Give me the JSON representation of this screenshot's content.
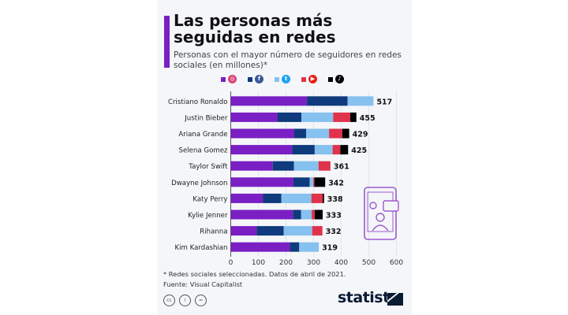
{
  "header": {
    "title": "Las personas más seguidas en redes",
    "subtitle": "Personas con el mayor número de seguidores en redes sociales (en millones)*"
  },
  "legend": [
    {
      "name": "Instagram",
      "icon": "instagram-icon",
      "color": "#7a1fc4",
      "glyph": "◎",
      "icon_bg": "#d9427a"
    },
    {
      "name": "Facebook",
      "icon": "facebook-icon",
      "color": "#0f3a7d",
      "glyph": "f",
      "icon_bg": "#3b5998"
    },
    {
      "name": "Twitter",
      "icon": "twitter-icon",
      "color": "#86c1ef",
      "glyph": "t",
      "icon_bg": "#1da1f2"
    },
    {
      "name": "YouTube",
      "icon": "youtube-icon",
      "color": "#e0324b",
      "glyph": "▶",
      "icon_bg": "#e62117"
    },
    {
      "name": "TikTok",
      "icon": "tiktok-icon",
      "color": "#000000",
      "glyph": "♪",
      "icon_bg": "#000000"
    }
  ],
  "chart_data": {
    "type": "bar",
    "orientation": "horizontal",
    "stacked": true,
    "title": "Las personas más seguidas en redes",
    "categories": [
      "Cristiano Ronaldo",
      "Justin Bieber",
      "Ariana Grande",
      "Selena Gomez",
      "Taylor Swift",
      "Dwayne Johnson",
      "Katy Perry",
      "Kylie Jenner",
      "Rihanna",
      "Kim Kardashian"
    ],
    "totals": [
      517,
      455,
      429,
      425,
      361,
      342,
      338,
      333,
      332,
      319
    ],
    "series": [
      {
        "name": "Instagram",
        "color": "#7a1fc4",
        "values": [
          276,
          170,
          230,
          222,
          152,
          227,
          116,
          225,
          94,
          214
        ]
      },
      {
        "name": "Facebook",
        "color": "#0f3a7d",
        "values": [
          147,
          86,
          43,
          82,
          77,
          59,
          67,
          30,
          98,
          34
        ]
      },
      {
        "name": "Twitter",
        "color": "#86c1ef",
        "values": [
          94,
          115,
          83,
          65,
          89,
          13,
          109,
          38,
          103,
          71
        ]
      },
      {
        "name": "YouTube",
        "color": "#e0324b",
        "values": [
          0,
          62,
          48,
          28,
          43,
          4,
          41,
          11,
          37,
          0
        ]
      },
      {
        "name": "TikTok",
        "color": "#000000",
        "values": [
          0,
          22,
          25,
          28,
          0,
          39,
          5,
          29,
          0,
          0
        ]
      }
    ],
    "xlim": [
      0,
      600
    ],
    "xticks": [
      0,
      100,
      200,
      300,
      400,
      500,
      600
    ],
    "grid": true,
    "legend_position": "top"
  },
  "footer": {
    "note": "* Redes sociales seleccionadas. Datos de abril de 2021.",
    "source": "Fuente: Visual Capitalist",
    "license_icons": [
      "cc",
      "by",
      "nd"
    ],
    "brand": "statista"
  }
}
